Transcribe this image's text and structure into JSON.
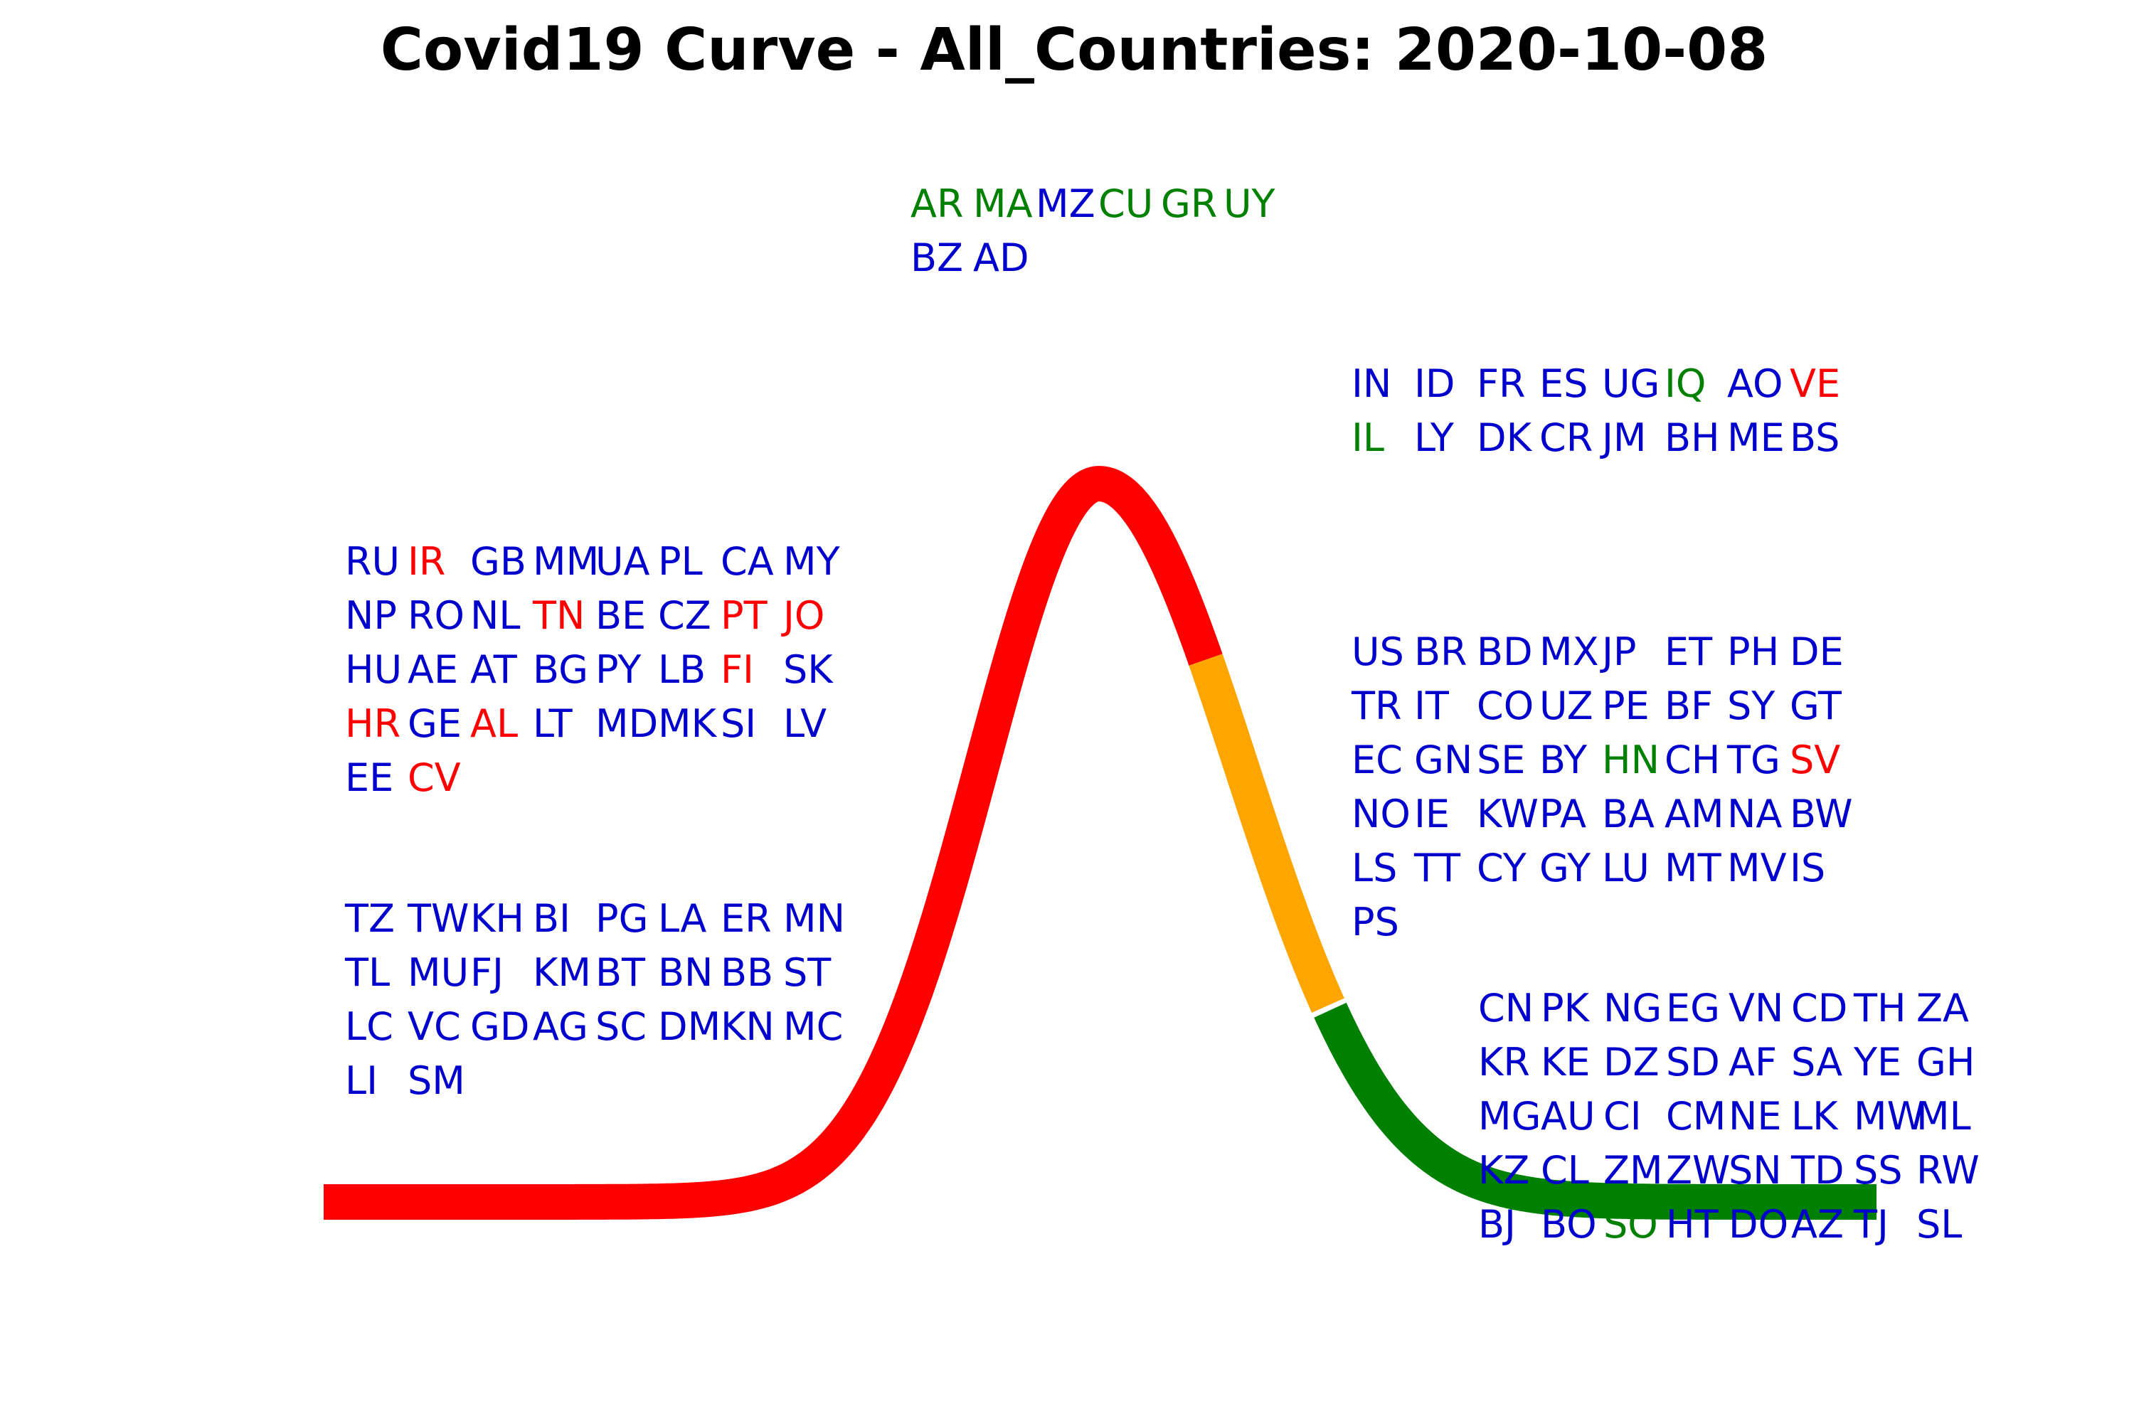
{
  "colors": {
    "blue": "#0000cc",
    "red": "#ff0000",
    "green": "#008000",
    "orange": "#ffa500",
    "title": "#000000"
  },
  "chart_data": {
    "type": "curve",
    "title": "Covid19 Curve - All_Countries: 2020-10-08",
    "curve_segments": [
      {
        "phase": "rising",
        "color": "red"
      },
      {
        "phase": "declining",
        "color": "orange"
      },
      {
        "phase": "flattening",
        "color": "green"
      }
    ],
    "groups": [
      {
        "id": "peak",
        "columns": 6,
        "codes": [
          {
            "c": "AR",
            "color": "green"
          },
          {
            "c": "MA",
            "color": "green"
          },
          {
            "c": "MZ",
            "color": "blue"
          },
          {
            "c": "CU",
            "color": "green"
          },
          {
            "c": "GR",
            "color": "green"
          },
          {
            "c": "UY",
            "color": "green"
          },
          {
            "c": "BZ",
            "color": "blue"
          },
          {
            "c": "AD",
            "color": "blue"
          }
        ]
      },
      {
        "id": "rising-upper",
        "columns": 8,
        "codes": [
          {
            "c": "RU",
            "color": "blue"
          },
          {
            "c": "IR",
            "color": "red"
          },
          {
            "c": "GB",
            "color": "blue"
          },
          {
            "c": "MM",
            "color": "blue"
          },
          {
            "c": "UA",
            "color": "blue"
          },
          {
            "c": "PL",
            "color": "blue"
          },
          {
            "c": "CA",
            "color": "blue"
          },
          {
            "c": "MY",
            "color": "blue"
          },
          {
            "c": "NP",
            "color": "blue"
          },
          {
            "c": "RO",
            "color": "blue"
          },
          {
            "c": "NL",
            "color": "blue"
          },
          {
            "c": "TN",
            "color": "red"
          },
          {
            "c": "BE",
            "color": "blue"
          },
          {
            "c": "CZ",
            "color": "blue"
          },
          {
            "c": "PT",
            "color": "red"
          },
          {
            "c": "JO",
            "color": "red"
          },
          {
            "c": "HU",
            "color": "blue"
          },
          {
            "c": "AE",
            "color": "blue"
          },
          {
            "c": "AT",
            "color": "blue"
          },
          {
            "c": "BG",
            "color": "blue"
          },
          {
            "c": "PY",
            "color": "blue"
          },
          {
            "c": "LB",
            "color": "blue"
          },
          {
            "c": "FI",
            "color": "red"
          },
          {
            "c": "SK",
            "color": "blue"
          },
          {
            "c": "HR",
            "color": "red"
          },
          {
            "c": "GE",
            "color": "blue"
          },
          {
            "c": "AL",
            "color": "red"
          },
          {
            "c": "LT",
            "color": "blue"
          },
          {
            "c": "MD",
            "color": "blue"
          },
          {
            "c": "MK",
            "color": "blue"
          },
          {
            "c": "SI",
            "color": "blue"
          },
          {
            "c": "LV",
            "color": "blue"
          },
          {
            "c": "EE",
            "color": "blue"
          },
          {
            "c": "CV",
            "color": "red"
          }
        ]
      },
      {
        "id": "rising-lower",
        "columns": 8,
        "codes": [
          {
            "c": "TZ",
            "color": "blue"
          },
          {
            "c": "TW",
            "color": "blue"
          },
          {
            "c": "KH",
            "color": "blue"
          },
          {
            "c": "BI",
            "color": "blue"
          },
          {
            "c": "PG",
            "color": "blue"
          },
          {
            "c": "LA",
            "color": "blue"
          },
          {
            "c": "ER",
            "color": "blue"
          },
          {
            "c": "MN",
            "color": "blue"
          },
          {
            "c": "TL",
            "color": "blue"
          },
          {
            "c": "MU",
            "color": "blue"
          },
          {
            "c": "FJ",
            "color": "blue"
          },
          {
            "c": "KM",
            "color": "blue"
          },
          {
            "c": "BT",
            "color": "blue"
          },
          {
            "c": "BN",
            "color": "blue"
          },
          {
            "c": "BB",
            "color": "blue"
          },
          {
            "c": "ST",
            "color": "blue"
          },
          {
            "c": "LC",
            "color": "blue"
          },
          {
            "c": "VC",
            "color": "blue"
          },
          {
            "c": "GD",
            "color": "blue"
          },
          {
            "c": "AG",
            "color": "blue"
          },
          {
            "c": "SC",
            "color": "blue"
          },
          {
            "c": "DM",
            "color": "blue"
          },
          {
            "c": "KN",
            "color": "blue"
          },
          {
            "c": "MC",
            "color": "blue"
          },
          {
            "c": "LI",
            "color": "blue"
          },
          {
            "c": "SM",
            "color": "blue"
          }
        ]
      },
      {
        "id": "past-peak-upper",
        "columns": 8,
        "codes": [
          {
            "c": "IN",
            "color": "blue"
          },
          {
            "c": "ID",
            "color": "blue"
          },
          {
            "c": "FR",
            "color": "blue"
          },
          {
            "c": "ES",
            "color": "blue"
          },
          {
            "c": "UG",
            "color": "blue"
          },
          {
            "c": "IQ",
            "color": "green"
          },
          {
            "c": "AO",
            "color": "blue"
          },
          {
            "c": "VE",
            "color": "red"
          },
          {
            "c": "IL",
            "color": "green"
          },
          {
            "c": "LY",
            "color": "blue"
          },
          {
            "c": "DK",
            "color": "blue"
          },
          {
            "c": "CR",
            "color": "blue"
          },
          {
            "c": "JM",
            "color": "blue"
          },
          {
            "c": "BH",
            "color": "blue"
          },
          {
            "c": "ME",
            "color": "blue"
          },
          {
            "c": "BS",
            "color": "blue"
          }
        ]
      },
      {
        "id": "declining",
        "columns": 8,
        "codes": [
          {
            "c": "US",
            "color": "blue"
          },
          {
            "c": "BR",
            "color": "blue"
          },
          {
            "c": "BD",
            "color": "blue"
          },
          {
            "c": "MX",
            "color": "blue"
          },
          {
            "c": "JP",
            "color": "blue"
          },
          {
            "c": "ET",
            "color": "blue"
          },
          {
            "c": "PH",
            "color": "blue"
          },
          {
            "c": "DE",
            "color": "blue"
          },
          {
            "c": "TR",
            "color": "blue"
          },
          {
            "c": "IT",
            "color": "blue"
          },
          {
            "c": "CO",
            "color": "blue"
          },
          {
            "c": "UZ",
            "color": "blue"
          },
          {
            "c": "PE",
            "color": "blue"
          },
          {
            "c": "BF",
            "color": "blue"
          },
          {
            "c": "SY",
            "color": "blue"
          },
          {
            "c": "GT",
            "color": "blue"
          },
          {
            "c": "EC",
            "color": "blue"
          },
          {
            "c": "GN",
            "color": "blue"
          },
          {
            "c": "SE",
            "color": "blue"
          },
          {
            "c": "BY",
            "color": "blue"
          },
          {
            "c": "HN",
            "color": "green"
          },
          {
            "c": "CH",
            "color": "blue"
          },
          {
            "c": "TG",
            "color": "blue"
          },
          {
            "c": "SV",
            "color": "red"
          },
          {
            "c": "NO",
            "color": "blue"
          },
          {
            "c": "IE",
            "color": "blue"
          },
          {
            "c": "KW",
            "color": "blue"
          },
          {
            "c": "PA",
            "color": "blue"
          },
          {
            "c": "BA",
            "color": "blue"
          },
          {
            "c": "AM",
            "color": "blue"
          },
          {
            "c": "NA",
            "color": "blue"
          },
          {
            "c": "BW",
            "color": "blue"
          },
          {
            "c": "LS",
            "color": "blue"
          },
          {
            "c": "TT",
            "color": "blue"
          },
          {
            "c": "CY",
            "color": "blue"
          },
          {
            "c": "GY",
            "color": "blue"
          },
          {
            "c": "LU",
            "color": "blue"
          },
          {
            "c": "MT",
            "color": "blue"
          },
          {
            "c": "MV",
            "color": "blue"
          },
          {
            "c": "IS",
            "color": "blue"
          },
          {
            "c": "PS",
            "color": "blue"
          }
        ]
      },
      {
        "id": "flattened",
        "columns": 8,
        "codes": [
          {
            "c": "CN",
            "color": "blue"
          },
          {
            "c": "PK",
            "color": "blue"
          },
          {
            "c": "NG",
            "color": "blue"
          },
          {
            "c": "EG",
            "color": "blue"
          },
          {
            "c": "VN",
            "color": "blue"
          },
          {
            "c": "CD",
            "color": "blue"
          },
          {
            "c": "TH",
            "color": "blue"
          },
          {
            "c": "ZA",
            "color": "blue"
          },
          {
            "c": "KR",
            "color": "blue"
          },
          {
            "c": "KE",
            "color": "blue"
          },
          {
            "c": "DZ",
            "color": "blue"
          },
          {
            "c": "SD",
            "color": "blue"
          },
          {
            "c": "AF",
            "color": "blue"
          },
          {
            "c": "SA",
            "color": "blue"
          },
          {
            "c": "YE",
            "color": "blue"
          },
          {
            "c": "GH",
            "color": "blue"
          },
          {
            "c": "MG",
            "color": "blue"
          },
          {
            "c": "AU",
            "color": "blue"
          },
          {
            "c": "CI",
            "color": "blue"
          },
          {
            "c": "CM",
            "color": "blue"
          },
          {
            "c": "NE",
            "color": "blue"
          },
          {
            "c": "LK",
            "color": "blue"
          },
          {
            "c": "MW",
            "color": "blue"
          },
          {
            "c": "ML",
            "color": "blue"
          },
          {
            "c": "KZ",
            "color": "blue"
          },
          {
            "c": "CL",
            "color": "blue"
          },
          {
            "c": "ZM",
            "color": "blue"
          },
          {
            "c": "ZW",
            "color": "blue"
          },
          {
            "c": "SN",
            "color": "blue"
          },
          {
            "c": "TD",
            "color": "blue"
          },
          {
            "c": "SS",
            "color": "blue"
          },
          {
            "c": "RW",
            "color": "blue"
          },
          {
            "c": "BJ",
            "color": "blue"
          },
          {
            "c": "BO",
            "color": "blue"
          },
          {
            "c": "SO",
            "color": "green"
          },
          {
            "c": "HT",
            "color": "blue"
          },
          {
            "c": "DO",
            "color": "blue"
          },
          {
            "c": "AZ",
            "color": "blue"
          },
          {
            "c": "TJ",
            "color": "blue"
          },
          {
            "c": "SL",
            "color": "blue"
          }
        ]
      }
    ]
  }
}
